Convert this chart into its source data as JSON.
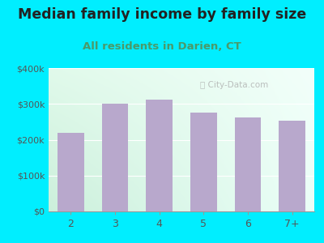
{
  "title": "Median family income by family size",
  "subtitle": "All residents in Darien, CT",
  "categories": [
    "2",
    "3",
    "4",
    "5",
    "6",
    "7+"
  ],
  "values": [
    220000,
    300000,
    312000,
    275000,
    263000,
    253000
  ],
  "bar_color": "#b8a8cc",
  "background_outer": "#00eeff",
  "title_color": "#222222",
  "subtitle_color": "#4a9a6a",
  "tick_color": "#555555",
  "ylim": [
    0,
    400000
  ],
  "yticks": [
    0,
    100000,
    200000,
    300000,
    400000
  ],
  "ytick_labels": [
    "$0",
    "$100k",
    "$200k",
    "$300k",
    "$400k"
  ],
  "watermark": "City-Data.com",
  "title_fontsize": 12.5,
  "subtitle_fontsize": 9.5
}
